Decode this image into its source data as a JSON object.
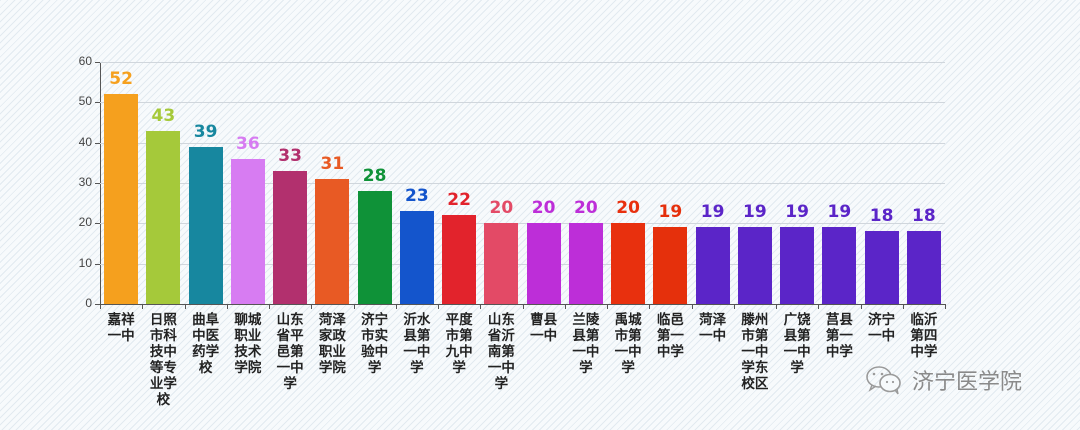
{
  "chart_data": {
    "type": "bar",
    "title": "",
    "xlabel": "",
    "ylabel": "",
    "ylim": [
      0,
      60
    ],
    "yticks": [
      0,
      10,
      20,
      30,
      40,
      50,
      60
    ],
    "grid": true,
    "legend": null,
    "categories": [
      "嘉祥一中",
      "日照市科技中等专业学校",
      "曲阜中医药学校",
      "聊城职业技术学院",
      "山东省平邑第一中学",
      "菏泽家政职业学院",
      "济宁市实验中学",
      "沂水县第一中学",
      "平度市第九中学",
      "山东省沂南第一中学",
      "曹县一中",
      "兰陵县第一中学",
      "禹城市第一中学",
      "临邑第一中学",
      "菏泽一中",
      "滕州市第一中学东校区",
      "广饶县第一中学",
      "莒县第一中学",
      "济宁一中",
      "临沂第四中学"
    ],
    "values": [
      52,
      43,
      39,
      36,
      33,
      31,
      28,
      23,
      22,
      20,
      20,
      20,
      20,
      19,
      19,
      19,
      19,
      19,
      18,
      18
    ],
    "colors": [
      "#f5a01e",
      "#a5c93a",
      "#17879f",
      "#d77cf2",
      "#b2306e",
      "#e85a24",
      "#0f9238",
      "#1455cc",
      "#e2232c",
      "#e34a66",
      "#bd2ed8",
      "#bd2ed8",
      "#e8300e",
      "#e5300c",
      "#5b25c8",
      "#5b25c8",
      "#5b25c8",
      "#5b25c8",
      "#5b25c8",
      "#5b25c8"
    ]
  },
  "watermark": {
    "icon": "wechat-icon",
    "text": "济宁医学院"
  }
}
